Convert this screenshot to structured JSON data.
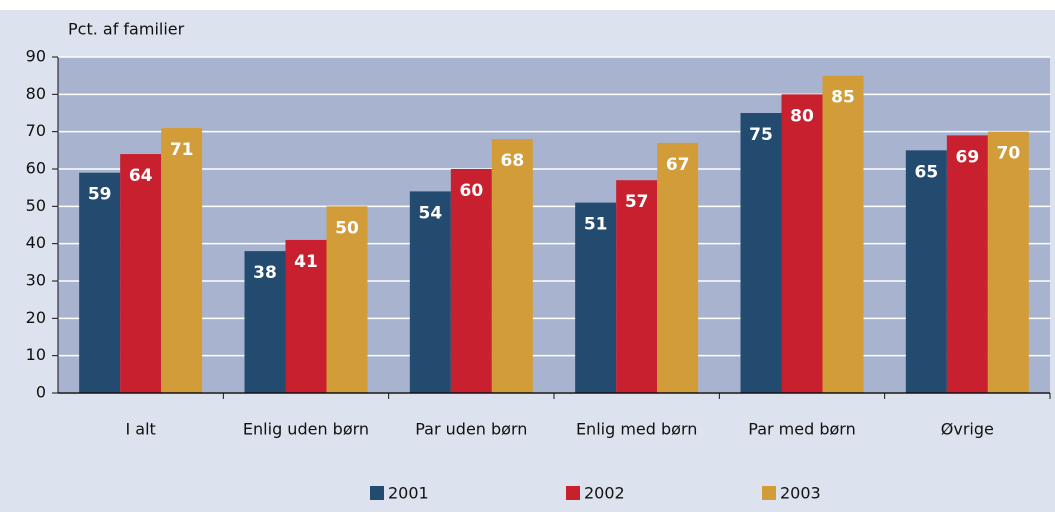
{
  "chart_data": {
    "type": "bar",
    "ylabel": "Pct. af familier",
    "categories": [
      "I alt",
      "Enlig uden børn",
      "Par uden børn",
      "Enlig med børn",
      "Par med børn",
      "Øvrige"
    ],
    "series": [
      {
        "name": "2001",
        "color": "#234a6f",
        "values": [
          59,
          38,
          54,
          51,
          75,
          65
        ]
      },
      {
        "name": "2002",
        "color": "#c8202f",
        "values": [
          64,
          41,
          60,
          57,
          80,
          69
        ]
      },
      {
        "name": "2003",
        "color": "#d29c38",
        "values": [
          71,
          50,
          68,
          67,
          85,
          70
        ]
      }
    ],
    "ylim": [
      0,
      90
    ],
    "yticks": [
      0,
      10,
      20,
      30,
      40,
      50,
      60,
      70,
      80,
      90
    ],
    "grid": true,
    "legend": "bottom"
  }
}
